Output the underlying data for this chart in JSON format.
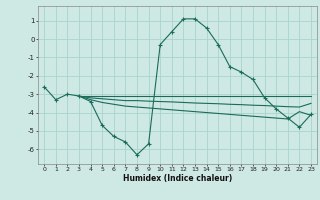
{
  "xlabel": "Humidex (Indice chaleur)",
  "bg_color": "#cee8e4",
  "grid_color": "#aad4ce",
  "line_color": "#1a6b5a",
  "xlim": [
    -0.5,
    23.5
  ],
  "ylim": [
    -6.8,
    1.8
  ],
  "yticks": [
    1,
    0,
    -1,
    -2,
    -3,
    -4,
    -5,
    -6
  ],
  "xticks": [
    0,
    1,
    2,
    3,
    4,
    5,
    6,
    7,
    8,
    9,
    10,
    11,
    12,
    13,
    14,
    15,
    16,
    17,
    18,
    19,
    20,
    21,
    22,
    23
  ],
  "curve1_x": [
    0,
    1,
    2,
    3,
    4,
    5,
    6,
    7,
    8,
    9,
    10,
    11,
    12,
    13,
    14,
    15,
    16,
    17,
    18,
    19,
    20,
    21,
    22,
    23
  ],
  "curve1_y": [
    -2.6,
    -3.3,
    -3.0,
    -3.1,
    -3.4,
    -4.7,
    -5.3,
    -5.6,
    -6.3,
    -5.7,
    -0.3,
    0.4,
    1.1,
    1.1,
    0.6,
    -0.3,
    -1.5,
    -1.8,
    -2.2,
    -3.2,
    -3.8,
    -4.3,
    -4.8,
    -4.1
  ],
  "curve2_x": [
    3,
    4,
    5,
    6,
    7,
    8,
    9,
    10,
    11,
    12,
    13,
    14,
    15,
    16,
    17,
    18,
    19,
    20,
    21,
    22,
    23
  ],
  "curve2_y": [
    -3.1,
    -3.1,
    -3.1,
    -3.1,
    -3.1,
    -3.1,
    -3.1,
    -3.1,
    -3.1,
    -3.1,
    -3.1,
    -3.1,
    -3.1,
    -3.1,
    -3.1,
    -3.1,
    -3.1,
    -3.1,
    -3.1,
    -3.1,
    -3.1
  ],
  "curve3_x": [
    3,
    4,
    5,
    6,
    7,
    8,
    9,
    10,
    11,
    12,
    13,
    14,
    15,
    16,
    17,
    18,
    19,
    20,
    21,
    22,
    23
  ],
  "curve3_y": [
    -3.1,
    -3.2,
    -3.25,
    -3.3,
    -3.35,
    -3.35,
    -3.38,
    -3.4,
    -3.42,
    -3.45,
    -3.48,
    -3.5,
    -3.52,
    -3.55,
    -3.57,
    -3.6,
    -3.62,
    -3.65,
    -3.68,
    -3.7,
    -3.5
  ],
  "curve4_x": [
    3,
    4,
    5,
    6,
    7,
    8,
    9,
    10,
    11,
    12,
    13,
    14,
    15,
    16,
    17,
    18,
    19,
    20,
    21,
    22,
    23
  ],
  "curve4_y": [
    -3.1,
    -3.3,
    -3.45,
    -3.55,
    -3.65,
    -3.7,
    -3.75,
    -3.8,
    -3.85,
    -3.9,
    -3.95,
    -4.0,
    -4.05,
    -4.1,
    -4.15,
    -4.2,
    -4.25,
    -4.3,
    -4.35,
    -3.95,
    -4.15
  ]
}
